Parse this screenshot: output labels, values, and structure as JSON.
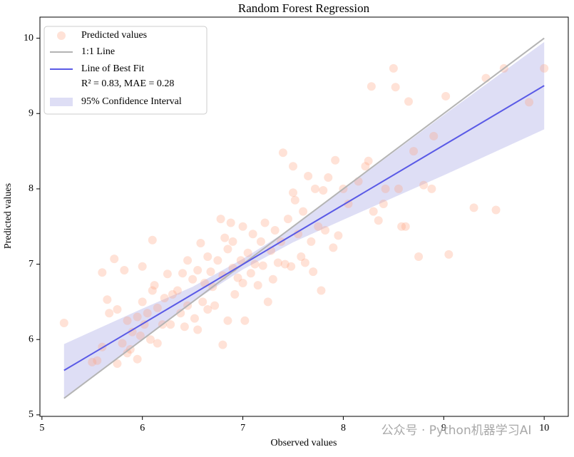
{
  "chart_data": {
    "type": "scatter",
    "title": "Random Forest Regression",
    "x_label": "Observed values",
    "y_label": "Predicted values",
    "xlim": [
      4.98,
      10.24
    ],
    "ylim": [
      4.98,
      10.28
    ],
    "xticks": [
      5,
      6,
      7,
      8,
      9,
      10
    ],
    "yticks": [
      5,
      6,
      7,
      8,
      9,
      10
    ],
    "grid": false,
    "legend": "upper left",
    "legend_note": "R² = 0.83, MAE = 0.28",
    "watermark": "公众号 · Python机器学习AI",
    "series": [
      {
        "name": "Predicted values",
        "type": "scatter",
        "color": "#ffa07a",
        "x": [
          5.22,
          5.5,
          5.55,
          5.6,
          5.6,
          5.65,
          5.67,
          5.72,
          5.75,
          5.75,
          5.8,
          5.82,
          5.85,
          5.85,
          5.88,
          5.9,
          5.95,
          5.95,
          5.98,
          6.0,
          6.0,
          6.02,
          6.05,
          6.08,
          6.1,
          6.1,
          6.12,
          6.15,
          6.15,
          6.2,
          6.22,
          6.25,
          6.28,
          6.3,
          6.35,
          6.38,
          6.4,
          6.42,
          6.45,
          6.45,
          6.5,
          6.52,
          6.55,
          6.55,
          6.58,
          6.6,
          6.62,
          6.65,
          6.65,
          6.68,
          6.7,
          6.72,
          6.75,
          6.78,
          6.8,
          6.8,
          6.82,
          6.85,
          6.85,
          6.88,
          6.9,
          6.9,
          6.92,
          6.95,
          6.98,
          7.0,
          7.0,
          7.02,
          7.05,
          7.08,
          7.1,
          7.12,
          7.15,
          7.18,
          7.2,
          7.22,
          7.25,
          7.28,
          7.3,
          7.32,
          7.35,
          7.38,
          7.4,
          7.42,
          7.45,
          7.48,
          7.5,
          7.5,
          7.52,
          7.55,
          7.58,
          7.6,
          7.62,
          7.65,
          7.68,
          7.7,
          7.72,
          7.75,
          7.78,
          7.8,
          7.82,
          7.85,
          7.9,
          7.92,
          7.95,
          8.0,
          8.05,
          8.15,
          8.22,
          8.25,
          8.28,
          8.3,
          8.35,
          8.4,
          8.42,
          8.5,
          8.52,
          8.55,
          8.58,
          8.62,
          8.65,
          8.7,
          8.75,
          8.8,
          8.88,
          8.9,
          9.02,
          9.05,
          9.3,
          9.42,
          9.52,
          9.6,
          9.85,
          10.0
        ],
        "values": [
          6.22,
          5.7,
          5.72,
          5.9,
          6.89,
          6.53,
          6.35,
          7.07,
          5.68,
          6.4,
          5.95,
          6.92,
          6.25,
          5.82,
          5.87,
          6.1,
          5.74,
          6.3,
          6.05,
          6.97,
          6.5,
          6.2,
          6.35,
          6.0,
          6.65,
          7.32,
          6.72,
          5.95,
          6.42,
          6.2,
          6.55,
          6.87,
          6.2,
          6.6,
          6.65,
          6.35,
          6.88,
          6.17,
          7.05,
          6.45,
          6.8,
          6.28,
          6.92,
          6.13,
          7.28,
          6.5,
          6.75,
          7.1,
          6.4,
          6.9,
          6.7,
          6.45,
          7.05,
          7.6,
          6.85,
          5.93,
          7.35,
          6.25,
          7.2,
          7.55,
          6.95,
          7.3,
          6.6,
          6.82,
          7.05,
          6.75,
          7.5,
          6.25,
          7.15,
          6.88,
          7.4,
          7.0,
          6.72,
          7.3,
          6.98,
          7.55,
          6.5,
          7.18,
          6.8,
          7.45,
          7.02,
          7.3,
          8.48,
          7.0,
          7.6,
          6.97,
          8.3,
          7.95,
          7.85,
          7.4,
          7.1,
          7.7,
          7.02,
          8.17,
          7.3,
          6.9,
          8.0,
          7.5,
          6.65,
          7.98,
          7.45,
          8.15,
          7.22,
          8.38,
          7.38,
          8.0,
          7.8,
          8.1,
          8.3,
          8.37,
          9.36,
          7.7,
          7.58,
          7.8,
          8.0,
          9.6,
          9.35,
          8.0,
          7.5,
          7.5,
          9.16,
          8.5,
          7.1,
          8.05,
          8.0,
          8.7,
          9.23,
          7.13,
          7.75,
          9.47,
          7.72,
          9.6,
          9.15,
          9.6
        ]
      },
      {
        "name": "1:1 Line",
        "type": "line",
        "color": "#b4b4b4",
        "x": [
          5.22,
          10
        ],
        "values": [
          5.22,
          10
        ]
      },
      {
        "name": "Line of Best Fit",
        "type": "line",
        "color": "#5a5ae6",
        "x": [
          5.22,
          10
        ],
        "values": [
          5.59,
          9.37
        ]
      },
      {
        "name": "95% Confidence Interval",
        "type": "band",
        "color": "#c8c8ee",
        "x": [
          5.22,
          6.0,
          6.5,
          7.0,
          7.5,
          8.0,
          9.0,
          10.0
        ],
        "lower": [
          5.23,
          6.01,
          6.5,
          6.93,
          7.29,
          7.59,
          8.18,
          8.79
        ],
        "upper": [
          5.94,
          6.41,
          6.7,
          7.07,
          7.49,
          7.99,
          8.98,
          9.95
        ]
      }
    ]
  }
}
